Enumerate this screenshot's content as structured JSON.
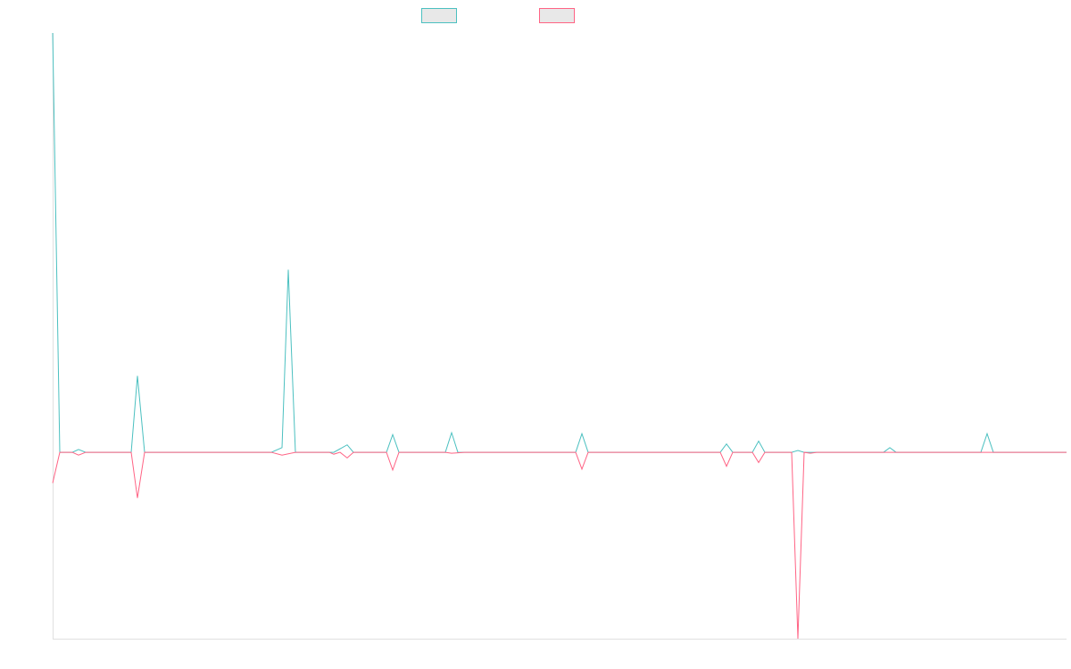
{
  "chart_data": {
    "type": "line",
    "xlim": [
      0,
      1136
    ],
    "ylim": [
      -2,
      4.5
    ],
    "legend": "top",
    "series": [
      {
        "color": "#4bc0c0",
        "x": [
          0,
          8,
          22,
          29,
          37,
          88,
          95,
          103,
          245,
          257,
          264,
          272,
          315,
          330,
          337,
          374,
          381,
          388,
          440,
          447,
          454,
          586,
          593,
          600,
          748,
          755,
          762,
          784,
          791,
          798,
          828,
          835,
          842,
          931,
          938,
          945,
          1040,
          1047,
          1054,
          1136
        ],
        "values": [
          4.5,
          0,
          0,
          0.03,
          0,
          0,
          0.82,
          0,
          0,
          0.05,
          1.96,
          0,
          0,
          0.08,
          0,
          0,
          0.19,
          0,
          0,
          0.21,
          0,
          0,
          0.2,
          0,
          0,
          0.09,
          0,
          0,
          0.12,
          0,
          0,
          0.02,
          0,
          0,
          0.05,
          0,
          0,
          0.2,
          0,
          0
        ]
      },
      {
        "color": "#ff6384",
        "x": [
          0,
          8,
          22,
          29,
          37,
          88,
          95,
          103,
          245,
          257,
          272,
          310,
          315,
          322,
          330,
          337,
          374,
          381,
          388,
          440,
          447,
          461,
          586,
          593,
          600,
          748,
          755,
          762,
          784,
          791,
          798,
          828,
          835,
          842,
          849,
          856,
          1136
        ],
        "values": [
          -0.33,
          0,
          0,
          -0.03,
          0,
          0,
          -0.49,
          0,
          0,
          -0.03,
          0,
          0,
          -0.02,
          0,
          -0.06,
          0,
          0,
          -0.19,
          0,
          0,
          -0.01,
          0,
          0,
          -0.18,
          0,
          0,
          -0.15,
          0,
          0,
          -0.11,
          0,
          0,
          -2,
          0,
          -0.01,
          0,
          0
        ]
      }
    ]
  }
}
